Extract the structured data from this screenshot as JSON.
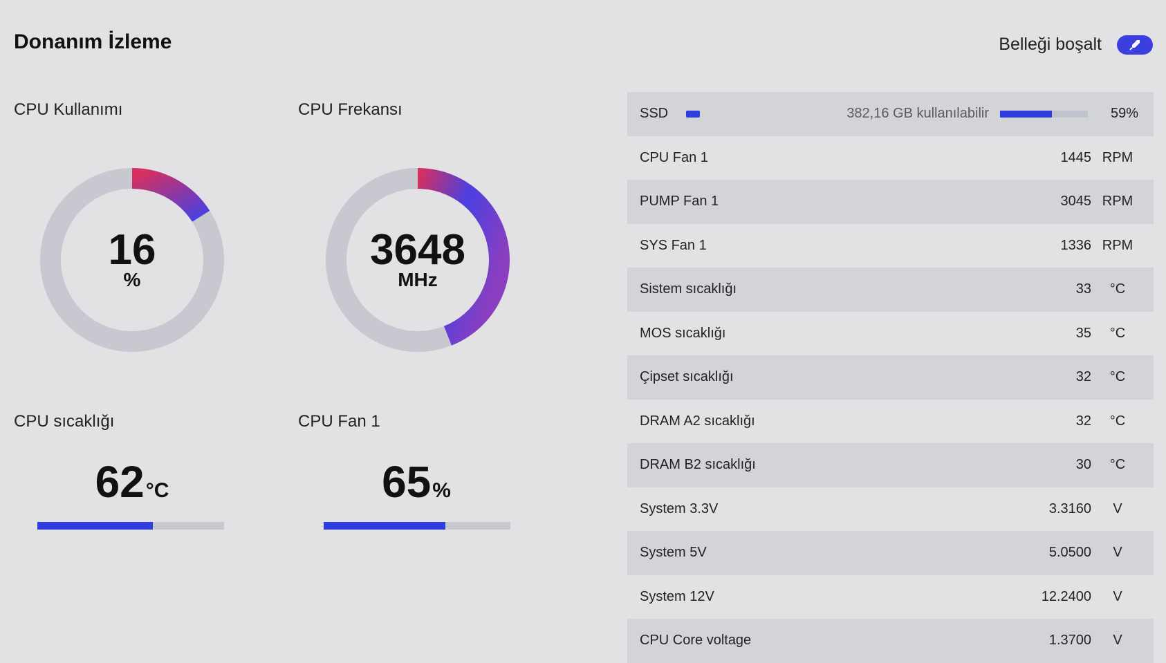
{
  "header": {
    "title": "Donanım İzleme",
    "free_memory_label": "Belleği boşalt",
    "free_memory_icon": "rocket-icon"
  },
  "cpu_usage": {
    "title": "CPU Kullanımı",
    "value": "16",
    "unit": "%",
    "fraction": 0.16
  },
  "cpu_frequency": {
    "title": "CPU Frekansı",
    "value": "3648",
    "unit": "MHz",
    "fraction": 0.44
  },
  "cpu_temp": {
    "title": "CPU sıcaklığı",
    "value": "62",
    "unit": "°C",
    "fraction": 0.62
  },
  "cpu_fan": {
    "title": "CPU Fan 1",
    "value": "65",
    "unit": "%",
    "fraction": 0.65
  },
  "ssd": {
    "label": "SSD",
    "available": "382,16 GB kullanılabilir",
    "percent": "59%",
    "fraction": 0.59
  },
  "sensors": [
    {
      "label": "CPU Fan 1",
      "value": "1445",
      "unit": "RPM"
    },
    {
      "label": "PUMP Fan 1",
      "value": "3045",
      "unit": "RPM"
    },
    {
      "label": "SYS Fan 1",
      "value": "1336",
      "unit": "RPM"
    },
    {
      "label": "Sistem sıcaklığı",
      "value": "33",
      "unit": "°C"
    },
    {
      "label": "MOS sıcaklığı",
      "value": "35",
      "unit": "°C"
    },
    {
      "label": "Çipset sıcaklığı",
      "value": "32",
      "unit": "°C"
    },
    {
      "label": "DRAM A2 sıcaklığı",
      "value": "32",
      "unit": "°C"
    },
    {
      "label": "DRAM B2 sıcaklığı",
      "value": "30",
      "unit": "°C"
    },
    {
      "label": "System 3.3V",
      "value": "3.3160",
      "unit": "V"
    },
    {
      "label": "System 5V",
      "value": "5.0500",
      "unit": "V"
    },
    {
      "label": "System 12V",
      "value": "12.2400",
      "unit": "V"
    },
    {
      "label": "CPU Core voltage",
      "value": "1.3700",
      "unit": "V"
    }
  ],
  "colors": {
    "accent": "#2f3ddf",
    "gauge_start": "#d6305e",
    "gauge_end": "#4a3fe0",
    "track": "#c8c9d0"
  }
}
